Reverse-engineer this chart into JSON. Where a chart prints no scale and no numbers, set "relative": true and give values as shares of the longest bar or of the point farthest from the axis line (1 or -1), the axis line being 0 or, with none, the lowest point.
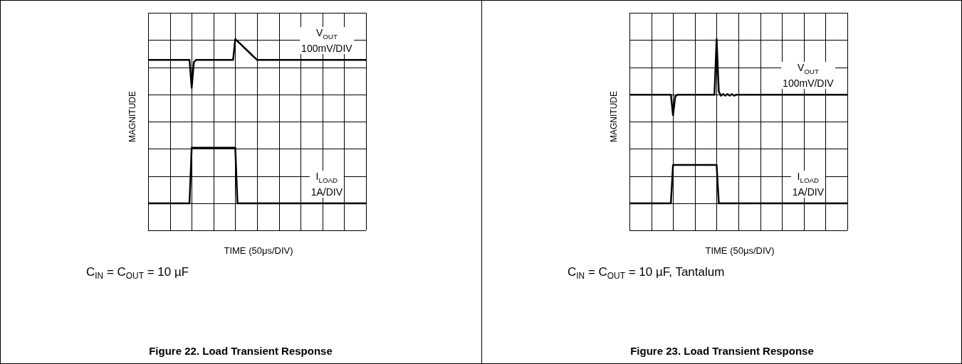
{
  "chart_data": [
    {
      "type": "line",
      "title": "Figure 22. Load Transient Response",
      "xlabel": "TIME (50μs/DIV)",
      "ylabel": "MAGNITUDE",
      "relative": true,
      "grid": true,
      "legend": false,
      "marker": "none",
      "line_style": "solid",
      "categories": [
        null,
        null,
        null,
        null,
        null,
        null,
        null,
        null,
        null,
        null,
        null,
        null,
        null,
        null,
        null,
        null,
        null,
        null,
        null,
        null,
        null,
        null,
        null,
        null,
        null,
        null,
        null,
        null,
        null,
        null,
        null,
        null,
        null,
        null,
        null,
        null,
        null,
        null,
        null,
        null,
        null,
        null,
        null,
        null,
        null,
        null,
        null,
        null,
        null,
        null,
        null,
        null,
        null,
        null,
        null,
        null,
        null,
        null,
        null,
        null,
        null,
        null,
        null,
        null,
        null,
        null,
        null,
        null,
        null,
        null,
        null,
        null,
        null,
        null,
        null,
        null,
        null,
        null,
        null,
        null,
        null,
        null,
        null,
        null,
        null,
        null,
        null,
        null,
        null,
        null,
        null,
        null,
        null,
        null,
        null,
        null,
        null,
        null,
        null,
        null,
        null
      ],
      "series": [
        {
          "name": "V$_{OUT}$",
          "color": "#000000",
          "values": [
            0.873,
            0.873,
            0.873,
            0.873,
            0.873,
            0.873,
            0.873,
            0.873,
            0.873,
            0.873,
            0.873,
            0.873,
            0.873,
            0.873,
            0.873,
            0.873,
            0.873,
            0.873,
            0.873,
            0.873,
            0.703,
            0.86,
            0.873,
            0.873,
            0.873,
            0.873,
            0.873,
            0.873,
            0.873,
            0.873,
            0.873,
            0.873,
            0.873,
            0.873,
            0.873,
            0.873,
            0.873,
            0.873,
            0.873,
            0.873,
            1,
            0.987,
            0.975,
            0.962,
            0.949,
            0.937,
            0.924,
            0.911,
            0.898,
            0.886,
            0.873,
            0.873,
            0.873,
            0.873,
            0.873,
            0.873,
            0.873,
            0.873,
            0.873,
            0.873,
            0.873,
            0.873,
            0.873,
            0.873,
            0.873,
            0.873,
            0.873,
            0.873,
            0.873,
            0.873,
            0.873,
            0.873,
            0.873,
            0.873,
            0.873,
            0.873,
            0.873,
            0.873,
            0.873,
            0.873,
            0.873,
            0.873,
            0.873,
            0.873,
            0.873,
            0.873,
            0.873,
            0.873,
            0.873,
            0.873,
            0.873,
            0.873,
            0.873,
            0.873,
            0.873,
            0.873,
            0.873,
            0.873,
            0.873,
            0.873,
            0.873
          ]
        },
        {
          "name": "I$_{LOAD}$",
          "color": "#000000",
          "values": [
            0,
            0,
            0,
            0,
            0,
            0,
            0,
            0,
            0,
            0,
            0,
            0,
            0,
            0,
            0,
            0,
            0,
            0,
            0,
            0,
            0.338,
            0.338,
            0.338,
            0.338,
            0.338,
            0.338,
            0.338,
            0.338,
            0.338,
            0.338,
            0.338,
            0.338,
            0.338,
            0.338,
            0.338,
            0.338,
            0.338,
            0.338,
            0.338,
            0.338,
            0.338,
            0,
            0,
            0,
            0,
            0,
            0,
            0,
            0,
            0,
            0,
            0,
            0,
            0,
            0,
            0,
            0,
            0,
            0,
            0,
            0,
            0,
            0,
            0,
            0,
            0,
            0,
            0,
            0,
            0,
            0,
            0,
            0,
            0,
            0,
            0,
            0,
            0,
            0,
            0,
            0,
            0,
            0,
            0,
            0,
            0,
            0,
            0,
            0,
            0,
            0,
            0,
            0,
            0,
            0,
            0,
            0,
            0,
            0,
            0,
            0
          ]
        }
      ],
      "annotations": [
        "100mV/DIV",
        "1A/DIV",
        "C$_{IN}$ = C$_{OUT}$ = 10 µF"
      ]
    },
    {
      "type": "line",
      "title": "Figure 23. Load Transient Response",
      "xlabel": "TIME (50μs/DIV)",
      "ylabel": "MAGNITUDE",
      "relative": true,
      "grid": true,
      "legend": false,
      "marker": "none",
      "line_style": "solid",
      "categories": [
        null,
        null,
        null,
        null,
        null,
        null,
        null,
        null,
        null,
        null,
        null,
        null,
        null,
        null,
        null,
        null,
        null,
        null,
        null,
        null,
        null,
        null,
        null,
        null,
        null,
        null,
        null,
        null,
        null,
        null,
        null,
        null,
        null,
        null,
        null,
        null,
        null,
        null,
        null,
        null,
        null,
        null,
        null,
        null,
        null,
        null,
        null,
        null,
        null,
        null,
        null,
        null,
        null,
        null,
        null,
        null,
        null,
        null,
        null,
        null,
        null,
        null,
        null,
        null,
        null,
        null,
        null,
        null,
        null,
        null,
        null,
        null,
        null,
        null,
        null,
        null,
        null,
        null,
        null,
        null,
        null,
        null,
        null,
        null,
        null,
        null,
        null,
        null,
        null,
        null,
        null,
        null,
        null,
        null,
        null,
        null,
        null,
        null,
        null,
        null,
        null
      ],
      "series": [
        {
          "name": "V$_{OUT}$",
          "color": "#000000",
          "values": [
            0.661,
            0.661,
            0.661,
            0.661,
            0.661,
            0.661,
            0.661,
            0.661,
            0.661,
            0.661,
            0.661,
            0.661,
            0.661,
            0.661,
            0.661,
            0.661,
            0.661,
            0.661,
            0.661,
            0.661,
            0.536,
            0.65,
            0.661,
            0.661,
            0.661,
            0.661,
            0.661,
            0.661,
            0.661,
            0.661,
            0.661,
            0.661,
            0.661,
            0.661,
            0.661,
            0.661,
            0.661,
            0.661,
            0.661,
            0.661,
            1,
            0.68,
            0.655,
            0.665,
            0.655,
            0.665,
            0.655,
            0.665,
            0.655,
            0.661,
            0.661,
            0.661,
            0.661,
            0.661,
            0.661,
            0.661,
            0.661,
            0.661,
            0.661,
            0.661,
            0.661,
            0.661,
            0.661,
            0.661,
            0.661,
            0.661,
            0.661,
            0.661,
            0.661,
            0.661,
            0.661,
            0.661,
            0.661,
            0.661,
            0.661,
            0.661,
            0.661,
            0.661,
            0.661,
            0.661,
            0.661,
            0.661,
            0.661,
            0.661,
            0.661,
            0.661,
            0.661,
            0.661,
            0.661,
            0.661,
            0.661,
            0.661,
            0.661,
            0.661,
            0.661,
            0.661,
            0.661,
            0.661,
            0.661,
            0.661,
            0.661
          ]
        },
        {
          "name": "I$_{LOAD}$",
          "color": "#000000",
          "values": [
            0,
            0,
            0,
            0,
            0,
            0,
            0,
            0,
            0,
            0,
            0,
            0,
            0,
            0,
            0,
            0,
            0,
            0,
            0,
            0,
            0.233,
            0.233,
            0.233,
            0.233,
            0.233,
            0.233,
            0.233,
            0.233,
            0.233,
            0.233,
            0.233,
            0.233,
            0.233,
            0.233,
            0.233,
            0.233,
            0.233,
            0.233,
            0.233,
            0.233,
            0.233,
            0,
            0,
            0,
            0,
            0,
            0,
            0,
            0,
            0,
            0,
            0,
            0,
            0,
            0,
            0,
            0,
            0,
            0,
            0,
            0,
            0,
            0,
            0,
            0,
            0,
            0,
            0,
            0,
            0,
            0,
            0,
            0,
            0,
            0,
            0,
            0,
            0,
            0,
            0,
            0,
            0,
            0,
            0,
            0,
            0,
            0,
            0,
            0,
            0,
            0,
            0,
            0,
            0,
            0,
            0,
            0,
            0,
            0,
            0,
            0
          ]
        }
      ],
      "annotations": [
        "100mV/DIV",
        "1A/DIV",
        "C$_{IN}$ = C$_{OUT}$ = 10 µF, Tantalum"
      ]
    }
  ]
}
